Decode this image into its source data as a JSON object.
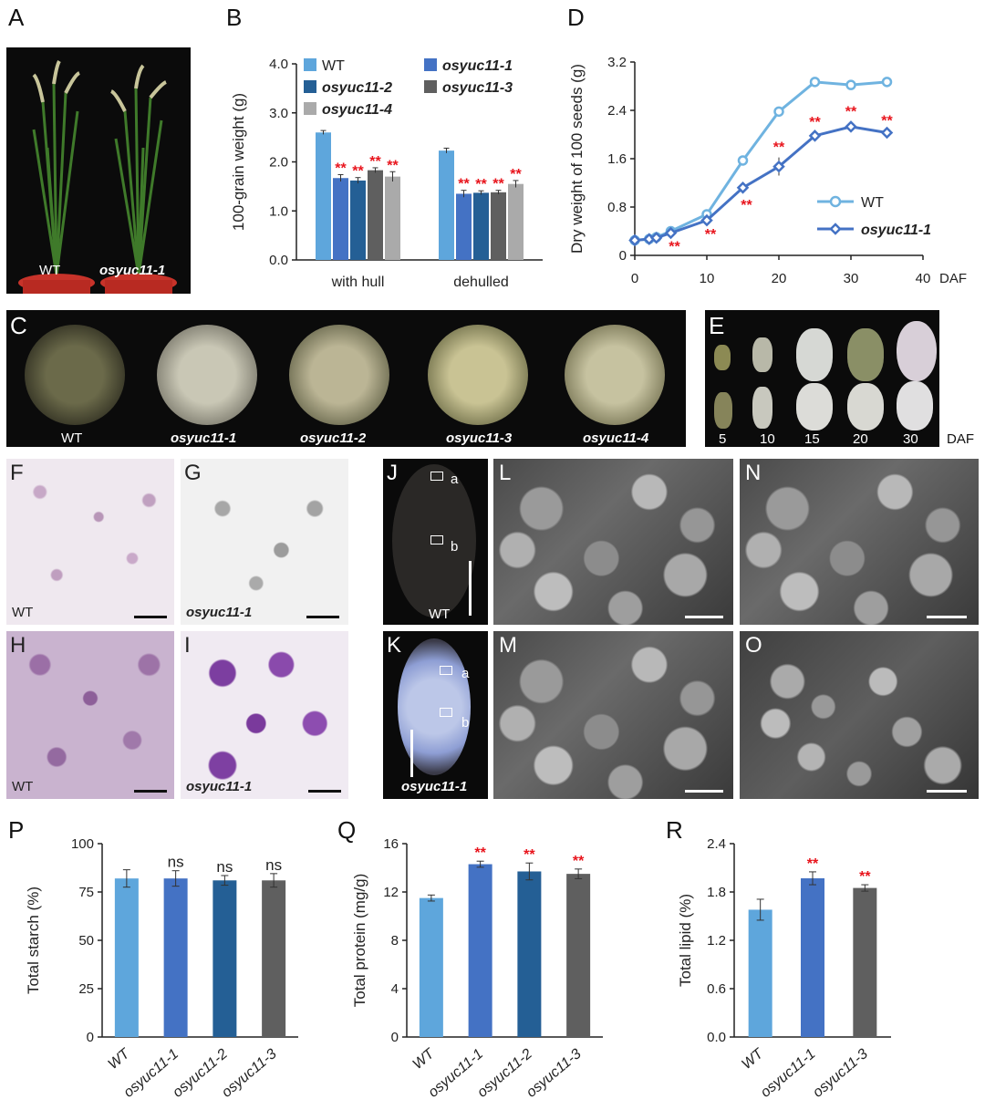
{
  "panel_letters": {
    "A": "A",
    "B": "B",
    "C": "C",
    "D": "D",
    "E": "E",
    "F": "F",
    "G": "G",
    "H": "H",
    "I": "I",
    "J": "J",
    "K": "K",
    "L": "L",
    "M": "M",
    "N": "N",
    "O": "O",
    "P": "P",
    "Q": "Q",
    "R": "R"
  },
  "photo_labels": {
    "a_wt": "WT",
    "a_mut": "osyuc11-1",
    "c_seeds": [
      "WT",
      "osyuc11-1",
      "osyuc11-2",
      "osyuc11-3",
      "osyuc11-4"
    ],
    "e_days": [
      "5",
      "10",
      "15",
      "20",
      "30"
    ],
    "e_unit": "DAF",
    "f": "WT",
    "g": "osyuc11-1",
    "h": "WT",
    "i": "osyuc11-1",
    "j": "WT",
    "k": "osyuc11-1",
    "region_a": "a",
    "region_b": "b"
  },
  "colors": {
    "wt": "#5ea6dc",
    "m1": "#4472c4",
    "m2": "#245f95",
    "m3": "#5f5f5f",
    "m4": "#aaaaaa",
    "sig": "#e8141c",
    "line_wt": "#6fb3e0",
    "line_m": "#4472c4"
  },
  "chart_data": [
    {
      "panel": "B",
      "type": "bar",
      "ylabel": "100-grain weight (g)",
      "categories": [
        "with hull",
        "dehulled"
      ],
      "ylim": [
        0,
        4.0
      ],
      "yticks": [
        "0.0",
        "1.0",
        "2.0",
        "3.0",
        "4.0"
      ],
      "legend": "top",
      "series": [
        {
          "name": "WT",
          "values": [
            2.6,
            2.23
          ],
          "errors": [
            0.04,
            0.05
          ],
          "sig": [
            "",
            ""
          ]
        },
        {
          "name": "osyuc11-1",
          "values": [
            1.67,
            1.35
          ],
          "errors": [
            0.07,
            0.07
          ],
          "sig": [
            "**",
            "**"
          ]
        },
        {
          "name": "osyuc11-2",
          "values": [
            1.62,
            1.37
          ],
          "errors": [
            0.06,
            0.04
          ],
          "sig": [
            "**",
            "**"
          ]
        },
        {
          "name": "osyuc11-3",
          "values": [
            1.83,
            1.38
          ],
          "errors": [
            0.05,
            0.04
          ],
          "sig": [
            "**",
            "**"
          ]
        },
        {
          "name": "osyuc11-4",
          "values": [
            1.7,
            1.55
          ],
          "errors": [
            0.1,
            0.07
          ],
          "sig": [
            "**",
            "**"
          ]
        }
      ]
    },
    {
      "panel": "D",
      "type": "line",
      "ylabel": "Dry weight of 100 seeds (g)",
      "xunit": "DAF",
      "xlim": [
        0,
        40
      ],
      "xticks": [
        "0",
        "10",
        "20",
        "30",
        "40"
      ],
      "ylim": [
        0,
        3.2
      ],
      "yticks": [
        "0",
        "0.8",
        "1.6",
        "2.4",
        "3.2"
      ],
      "legend": "right",
      "series": [
        {
          "name": "WT",
          "x": [
            0,
            2,
            3,
            5,
            10,
            15,
            20,
            25,
            30,
            35
          ],
          "y": [
            0.25,
            0.27,
            0.3,
            0.4,
            0.68,
            1.57,
            2.38,
            2.87,
            2.82,
            2.87
          ],
          "errors": [
            0.02,
            0.02,
            0.02,
            0.03,
            0.04,
            0.04,
            0.04,
            0.05,
            0.08,
            0.04
          ]
        },
        {
          "name": "osyuc11-1",
          "x": [
            0,
            2,
            3,
            5,
            10,
            15,
            20,
            25,
            30,
            35
          ],
          "y": [
            0.25,
            0.27,
            0.29,
            0.37,
            0.58,
            1.12,
            1.47,
            1.98,
            2.13,
            2.03
          ],
          "errors": [
            0.02,
            0.02,
            0.02,
            0.03,
            0.04,
            0.09,
            0.15,
            0.06,
            0.08,
            0.03
          ],
          "sig_at": [
            5,
            10,
            15,
            20,
            25,
            30,
            35
          ]
        }
      ]
    },
    {
      "panel": "P",
      "type": "bar",
      "ylabel": "Total starch (%)",
      "categories": [
        "WT",
        "osyuc11-1",
        "osyuc11-2",
        "osyuc11-3"
      ],
      "values": [
        82,
        82,
        81,
        81
      ],
      "errors": [
        4.5,
        4,
        2.5,
        3.5
      ],
      "sig": [
        "",
        "ns",
        "ns",
        "ns"
      ],
      "ylim": [
        0,
        100
      ],
      "yticks": [
        "0",
        "25",
        "50",
        "75",
        "100"
      ]
    },
    {
      "panel": "Q",
      "type": "bar",
      "ylabel": "Total protein (mg/g)",
      "categories": [
        "WT",
        "osyuc11-1",
        "osyuc11-2",
        "osyuc11-3"
      ],
      "values": [
        11.5,
        14.3,
        13.7,
        13.5
      ],
      "errors": [
        0.25,
        0.25,
        0.7,
        0.4
      ],
      "sig": [
        "",
        "**",
        "**",
        "**"
      ],
      "ylim": [
        0,
        16
      ],
      "yticks": [
        "0",
        "4",
        "8",
        "12",
        "16"
      ]
    },
    {
      "panel": "R",
      "type": "bar",
      "ylabel": "Total lipid (%)",
      "categories": [
        "WT",
        "osyuc11-1",
        "osyuc11-3"
      ],
      "values": [
        1.58,
        1.97,
        1.85
      ],
      "errors": [
        0.13,
        0.08,
        0.04
      ],
      "sig": [
        "",
        "**",
        "**"
      ],
      "ylim": [
        0,
        2.4
      ],
      "yticks": [
        "0.0",
        "0.6",
        "1.2",
        "1.8",
        "2.4"
      ]
    }
  ]
}
